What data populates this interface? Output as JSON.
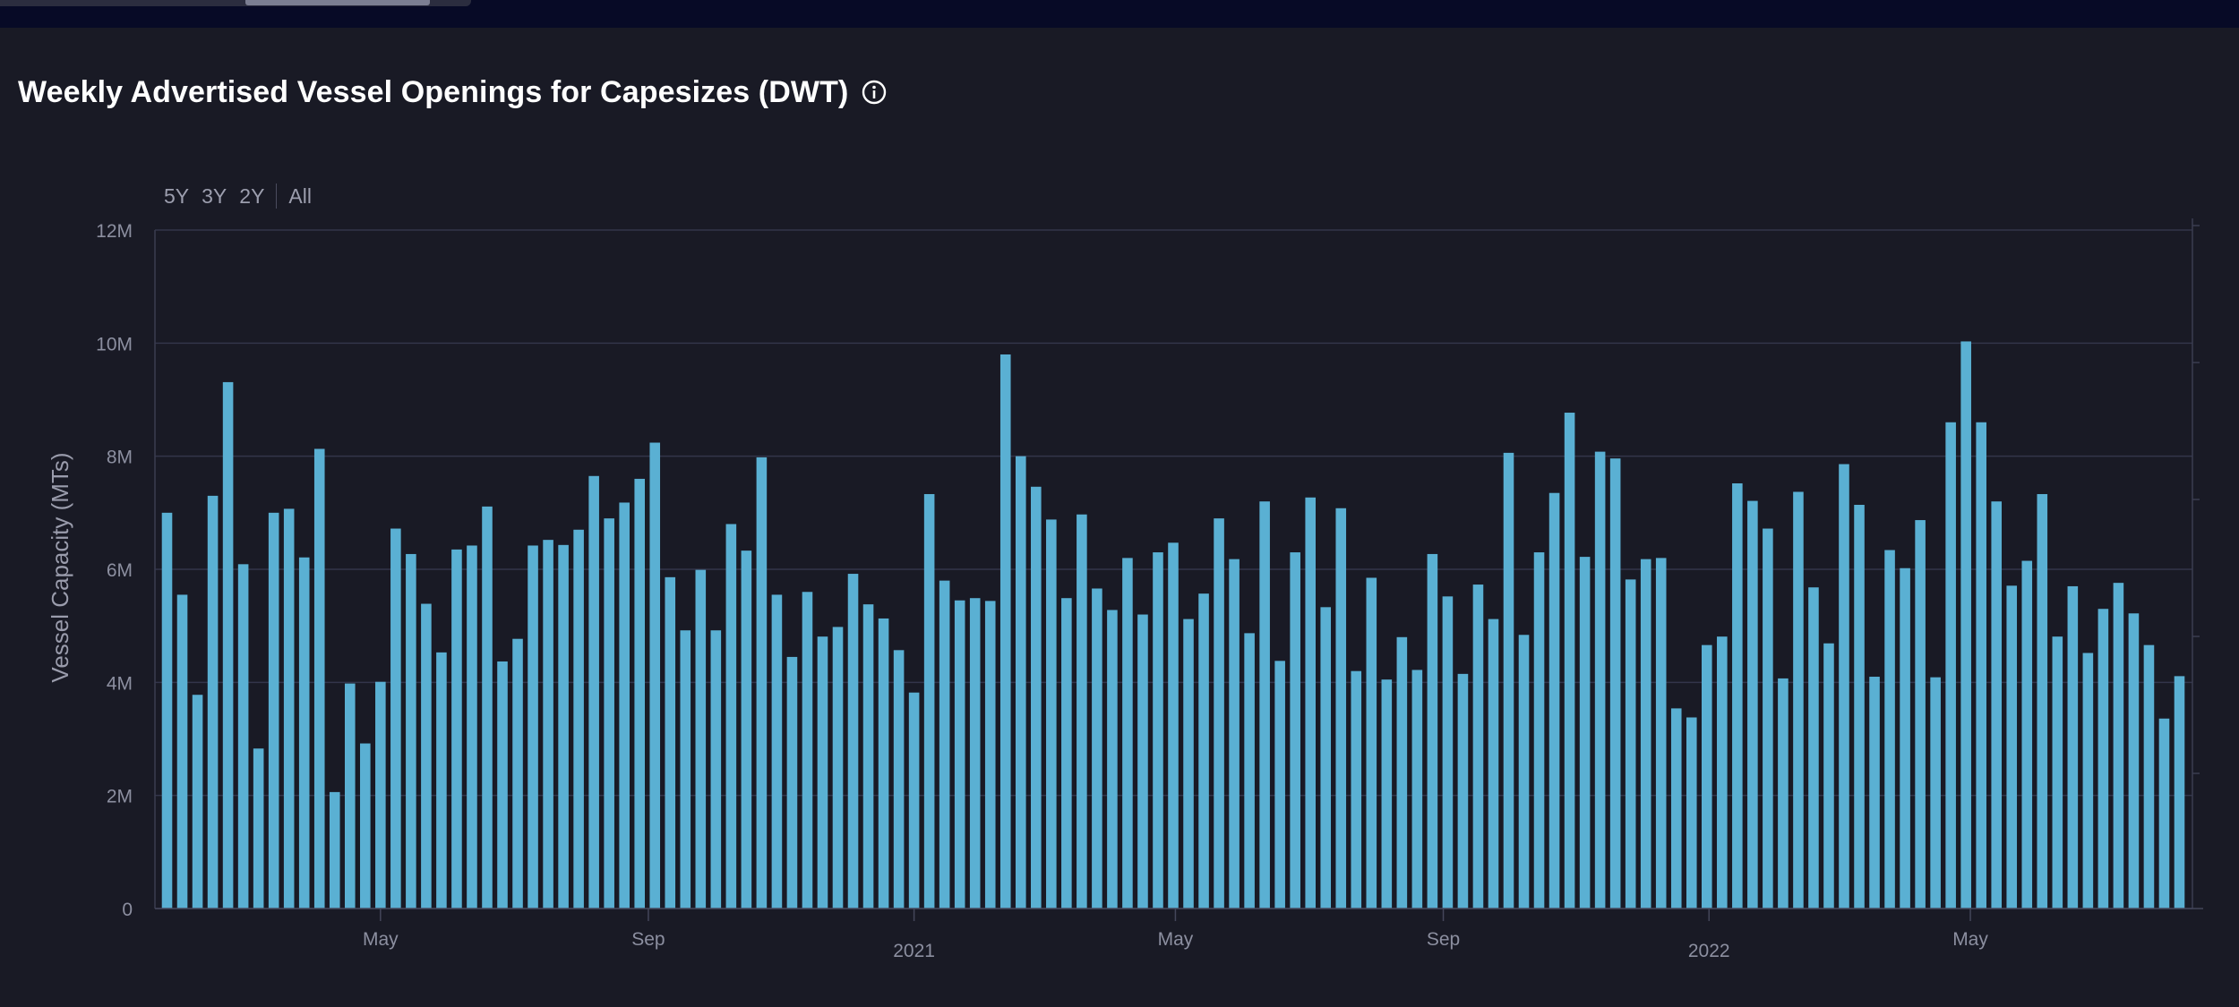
{
  "header": {
    "title": "Weekly Advertised Vessel Openings for Capesizes (DWT)",
    "info_icon": "info-icon"
  },
  "range_buttons": [
    "5Y",
    "3Y",
    "2Y",
    "All"
  ],
  "colors": {
    "bar": "#5ab0d3",
    "background": "#191a25",
    "grid": "#33354a"
  },
  "chart_data": {
    "type": "bar",
    "title": "Weekly Advertised Vessel Openings for Capesizes (DWT)",
    "ylabel": "Vessel Capacity (MTs)",
    "xlabel": "",
    "ylim": [
      0,
      12000000
    ],
    "yticks": [
      {
        "value": 0,
        "label": "0"
      },
      {
        "value": 2000000,
        "label": "2M"
      },
      {
        "value": 4000000,
        "label": "4M"
      },
      {
        "value": 6000000,
        "label": "6M"
      },
      {
        "value": 8000000,
        "label": "8M"
      },
      {
        "value": 10000000,
        "label": "10M"
      },
      {
        "value": 12000000,
        "label": "12M"
      }
    ],
    "xticks": [
      {
        "date": "2020-05-01",
        "label": "May"
      },
      {
        "date": "2020-09-01",
        "label": "Sep"
      },
      {
        "date": "2021-01-01",
        "label": "2021"
      },
      {
        "date": "2021-05-01",
        "label": "May"
      },
      {
        "date": "2021-09-01",
        "label": "Sep"
      },
      {
        "date": "2022-01-01",
        "label": "2022"
      },
      {
        "date": "2022-05-01",
        "label": "May"
      }
    ],
    "first_week": "2020-01-24",
    "grid": true,
    "series": [
      {
        "values": [
          7000000,
          5550000,
          3780000,
          7300000,
          9310000,
          6090000,
          2830000,
          7000000,
          7070000,
          6210000,
          8130000,
          2060000,
          3980000,
          2920000,
          4010000,
          6720000,
          6270000,
          5390000,
          4530000,
          6350000,
          6420000,
          7110000,
          4370000,
          4770000,
          6420000,
          6520000,
          6430000,
          6700000,
          7650000,
          6900000,
          7180000,
          7600000,
          8240000,
          5860000,
          4920000,
          5990000,
          4920000,
          6800000,
          6330000,
          7980000,
          5550000,
          4450000,
          5600000,
          4810000,
          4980000,
          5920000,
          5380000,
          5130000,
          4570000,
          3820000,
          7330000,
          5800000,
          5450000,
          5490000,
          5440000,
          9800000,
          8000000,
          7460000,
          6880000,
          5490000,
          6970000,
          5660000,
          5280000,
          6200000,
          5200000,
          6300000,
          6470000,
          5120000,
          5570000,
          6900000,
          6180000,
          4870000,
          7200000,
          4380000,
          6300000,
          7270000,
          5330000,
          7080000,
          4200000,
          5850000,
          4050000,
          4800000,
          4220000,
          6270000,
          5520000,
          4150000,
          5730000,
          5120000,
          8060000,
          4840000,
          6300000,
          7350000,
          8770000,
          6220000,
          8080000,
          7960000,
          5820000,
          6180000,
          6200000,
          3540000,
          3380000,
          4660000,
          4810000,
          7520000,
          7210000,
          6720000,
          4070000,
          7370000,
          5680000,
          4690000,
          7860000,
          7140000,
          4100000,
          6340000,
          6020000,
          6870000,
          4090000,
          8600000,
          10030000,
          8600000,
          7200000,
          5710000,
          6150000,
          7330000,
          4810000,
          5700000,
          4520000,
          5300000,
          5760000,
          5220000,
          4660000,
          3360000,
          4110000
        ]
      }
    ]
  }
}
